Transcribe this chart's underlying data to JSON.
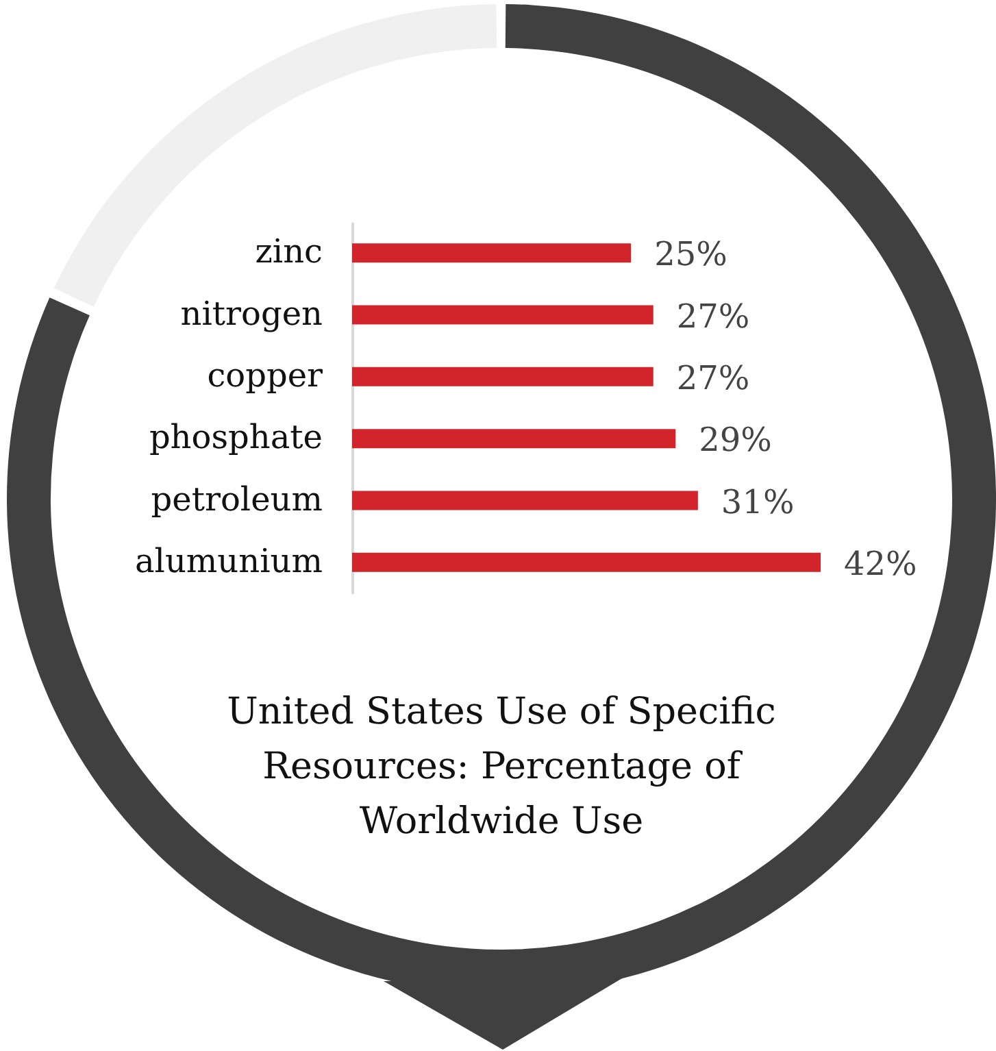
{
  "chart_data": {
    "type": "bar",
    "orientation": "horizontal",
    "title": "United States Use of Specific Resources: Percentage of Worldwide Use",
    "categories": [
      "zinc",
      "nitrogen",
      "copper",
      "phosphate",
      "petroleum",
      "alumunium"
    ],
    "values": [
      25,
      27,
      27,
      29,
      31,
      42
    ],
    "value_labels": [
      "25%",
      "27%",
      "27%",
      "29%",
      "31%",
      "42%"
    ],
    "color": "#d1242b",
    "tick_labels": "y"
  }
}
